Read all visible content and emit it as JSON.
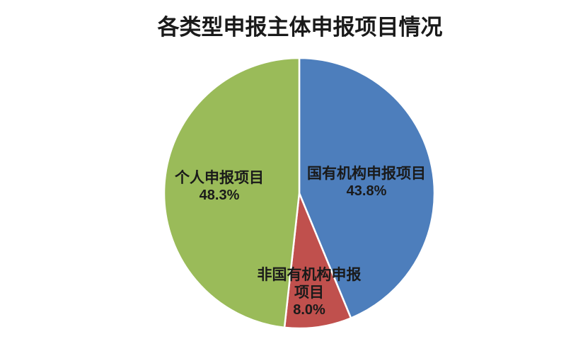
{
  "page": {
    "background_color": "#ffffff",
    "text_color": "#1a1a1a"
  },
  "chart_data": {
    "type": "pie",
    "title": "各类型申报主体申报项目情况",
    "categories": [
      "国有机构申报项目",
      "非国有机构申报项目",
      "个人申报项目"
    ],
    "values": [
      43.8,
      8.0,
      48.3
    ],
    "pct_labels": [
      "43.8%",
      "8.0%",
      "48.3%"
    ],
    "colors": [
      "#4d7ebc",
      "#c0504d",
      "#9abb59"
    ],
    "separator_color": "#ffffff",
    "start_position": "top",
    "direction": "clockwise",
    "legend": "none",
    "label_placement": "inside"
  }
}
